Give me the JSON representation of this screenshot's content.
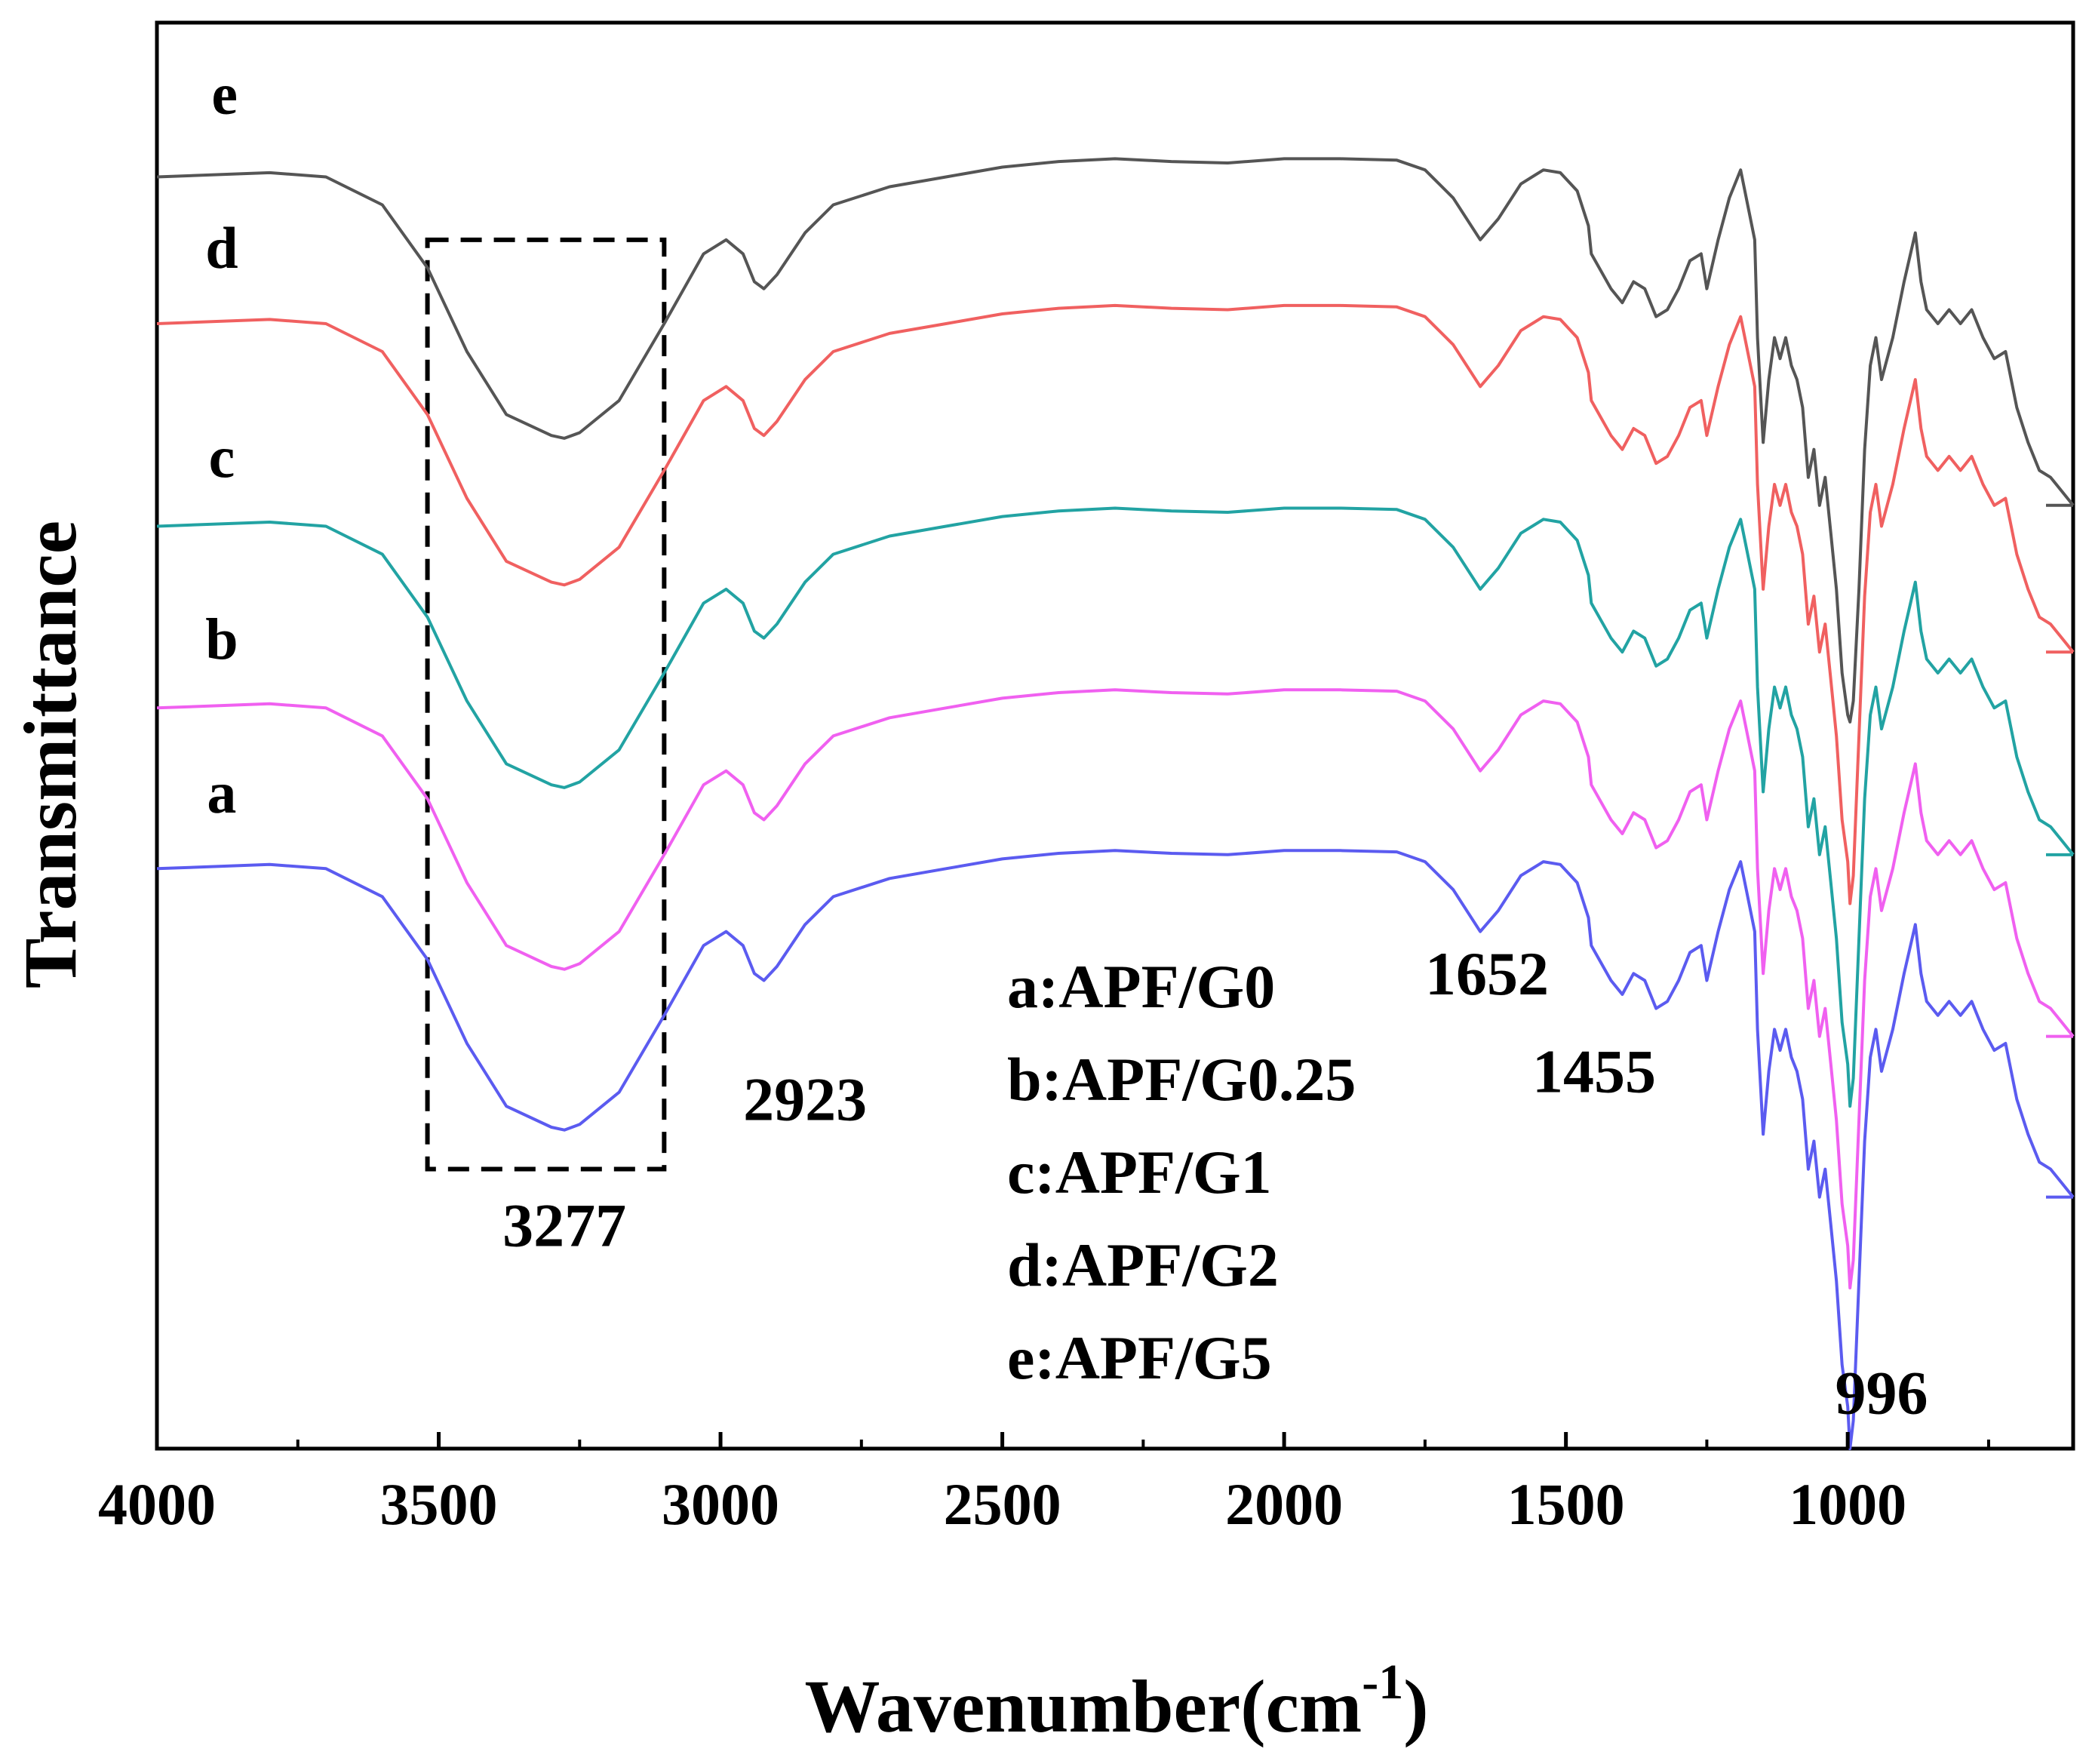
{
  "chart_data": {
    "type": "line",
    "title": "",
    "xlabel": "Wavenumber(cm",
    "xlabel_sup": "-1",
    "xlabel_close": ")",
    "ylabel": "Transmittance",
    "xlim": [
      4000,
      600
    ],
    "ylim": [
      0,
      1
    ],
    "xticks": [
      4000,
      3500,
      3000,
      2500,
      2000,
      1500,
      1000
    ],
    "xtick_labels": [
      "4000",
      "3500",
      "3000",
      "2500",
      "2000",
      "1500",
      "1000"
    ],
    "grid": false,
    "offset_stacked": true,
    "series": [
      {
        "name": "a:APF/G0",
        "id": "a",
        "color": "#5b5bf0",
        "x": [
          4000,
          3800,
          3700,
          3600,
          3520,
          3450,
          3380,
          3300,
          3277,
          3250,
          3180,
          3100,
          3030,
          2990,
          2960,
          2940,
          2923,
          2900,
          2850,
          2800,
          2700,
          2600,
          2500,
          2400,
          2300,
          2200,
          2100,
          2000,
          1900,
          1800,
          1750,
          1700,
          1652,
          1620,
          1580,
          1540,
          1510,
          1480,
          1460,
          1455,
          1420,
          1400,
          1380,
          1360,
          1340,
          1320,
          1300,
          1280,
          1260,
          1250,
          1230,
          1210,
          1190,
          1180,
          1165,
          1160,
          1150,
          1140,
          1130,
          1120,
          1110,
          1100,
          1090,
          1080,
          1070,
          1060,
          1050,
          1040,
          1030,
          1020,
          1010,
          1000,
          996,
          990,
          980,
          970,
          960,
          950,
          940,
          920,
          900,
          880,
          870,
          860,
          840,
          820,
          800,
          780,
          760,
          740,
          720,
          700,
          680,
          660,
          640,
          620,
          600
        ],
        "y": [
          0.415,
          0.418,
          0.415,
          0.395,
          0.35,
          0.29,
          0.245,
          0.23,
          0.228,
          0.232,
          0.255,
          0.31,
          0.36,
          0.37,
          0.36,
          0.34,
          0.335,
          0.345,
          0.375,
          0.395,
          0.408,
          0.415,
          0.422,
          0.426,
          0.428,
          0.426,
          0.425,
          0.428,
          0.428,
          0.427,
          0.42,
          0.4,
          0.37,
          0.385,
          0.41,
          0.42,
          0.418,
          0.405,
          0.38,
          0.36,
          0.335,
          0.325,
          0.34,
          0.335,
          0.315,
          0.32,
          0.335,
          0.355,
          0.36,
          0.335,
          0.37,
          0.4,
          0.42,
          0.4,
          0.37,
          0.3,
          0.225,
          0.27,
          0.3,
          0.285,
          0.3,
          0.28,
          0.27,
          0.25,
          0.2,
          0.22,
          0.18,
          0.2,
          0.16,
          0.12,
          0.06,
          0.03,
          0.0,
          0.02,
          0.12,
          0.22,
          0.28,
          0.3,
          0.27,
          0.3,
          0.34,
          0.375,
          0.34,
          0.32,
          0.31,
          0.32,
          0.31,
          0.32,
          0.3,
          0.285,
          0.29,
          0.25,
          0.225,
          0.205,
          0.2,
          0.19,
          0.18
        ]
      },
      {
        "name": "b:APF/G0.25",
        "id": "b",
        "color": "#f060f0",
        "x": [
          4000,
          3800,
          3700,
          3600,
          3520,
          3450,
          3380,
          3300,
          3277,
          3250,
          3180,
          3100,
          3030,
          2990,
          2960,
          2940,
          2923,
          2900,
          2850,
          2800,
          2700,
          2600,
          2500,
          2400,
          2300,
          2200,
          2100,
          2000,
          1900,
          1800,
          1750,
          1700,
          1652,
          1620,
          1580,
          1540,
          1510,
          1480,
          1460,
          1455,
          1420,
          1400,
          1380,
          1360,
          1340,
          1320,
          1300,
          1280,
          1260,
          1250,
          1230,
          1210,
          1190,
          1180,
          1165,
          1160,
          1150,
          1140,
          1130,
          1120,
          1110,
          1100,
          1090,
          1080,
          1070,
          1060,
          1050,
          1040,
          1030,
          1020,
          1010,
          1000,
          996,
          990,
          980,
          970,
          960,
          950,
          940,
          920,
          900,
          880,
          870,
          860,
          840,
          820,
          800,
          780,
          760,
          740,
          720,
          700,
          680,
          660,
          640,
          620,
          600
        ],
        "y": [
          0.53,
          0.533,
          0.53,
          0.51,
          0.465,
          0.405,
          0.36,
          0.345,
          0.343,
          0.347,
          0.37,
          0.425,
          0.475,
          0.485,
          0.475,
          0.455,
          0.45,
          0.46,
          0.49,
          0.51,
          0.523,
          0.53,
          0.537,
          0.541,
          0.543,
          0.541,
          0.54,
          0.543,
          0.543,
          0.542,
          0.535,
          0.515,
          0.485,
          0.5,
          0.525,
          0.535,
          0.533,
          0.52,
          0.495,
          0.475,
          0.45,
          0.44,
          0.455,
          0.45,
          0.43,
          0.435,
          0.45,
          0.47,
          0.475,
          0.45,
          0.485,
          0.515,
          0.535,
          0.515,
          0.485,
          0.415,
          0.34,
          0.385,
          0.415,
          0.4,
          0.415,
          0.395,
          0.385,
          0.365,
          0.315,
          0.335,
          0.295,
          0.315,
          0.275,
          0.235,
          0.175,
          0.145,
          0.115,
          0.135,
          0.235,
          0.335,
          0.395,
          0.415,
          0.385,
          0.415,
          0.455,
          0.49,
          0.455,
          0.435,
          0.425,
          0.435,
          0.425,
          0.435,
          0.415,
          0.4,
          0.405,
          0.365,
          0.34,
          0.32,
          0.315,
          0.305,
          0.295
        ]
      },
      {
        "name": "c:APF/G1",
        "id": "c",
        "color": "#22a3a3",
        "x": [
          4000,
          3800,
          3700,
          3600,
          3520,
          3450,
          3380,
          3300,
          3277,
          3250,
          3180,
          3100,
          3030,
          2990,
          2960,
          2940,
          2923,
          2900,
          2850,
          2800,
          2700,
          2600,
          2500,
          2400,
          2300,
          2200,
          2100,
          2000,
          1900,
          1800,
          1750,
          1700,
          1652,
          1620,
          1580,
          1540,
          1510,
          1480,
          1460,
          1455,
          1420,
          1400,
          1380,
          1360,
          1340,
          1320,
          1300,
          1280,
          1260,
          1250,
          1230,
          1210,
          1190,
          1180,
          1165,
          1160,
          1150,
          1140,
          1130,
          1120,
          1110,
          1100,
          1090,
          1080,
          1070,
          1060,
          1050,
          1040,
          1030,
          1020,
          1010,
          1000,
          996,
          990,
          980,
          970,
          960,
          950,
          940,
          920,
          900,
          880,
          870,
          860,
          840,
          820,
          800,
          780,
          760,
          740,
          720,
          700,
          680,
          660,
          640,
          620,
          600
        ],
        "y": [
          0.66,
          0.663,
          0.66,
          0.64,
          0.595,
          0.535,
          0.49,
          0.475,
          0.473,
          0.477,
          0.5,
          0.555,
          0.605,
          0.615,
          0.605,
          0.585,
          0.58,
          0.59,
          0.62,
          0.64,
          0.653,
          0.66,
          0.667,
          0.671,
          0.673,
          0.671,
          0.67,
          0.673,
          0.673,
          0.672,
          0.665,
          0.645,
          0.615,
          0.63,
          0.655,
          0.665,
          0.663,
          0.65,
          0.625,
          0.605,
          0.58,
          0.57,
          0.585,
          0.58,
          0.56,
          0.565,
          0.58,
          0.6,
          0.605,
          0.58,
          0.615,
          0.645,
          0.665,
          0.645,
          0.615,
          0.545,
          0.47,
          0.515,
          0.545,
          0.53,
          0.545,
          0.525,
          0.515,
          0.495,
          0.445,
          0.465,
          0.425,
          0.445,
          0.405,
          0.365,
          0.305,
          0.275,
          0.245,
          0.265,
          0.365,
          0.465,
          0.525,
          0.545,
          0.515,
          0.545,
          0.585,
          0.62,
          0.585,
          0.565,
          0.555,
          0.565,
          0.555,
          0.565,
          0.545,
          0.53,
          0.535,
          0.495,
          0.47,
          0.45,
          0.445,
          0.435,
          0.425
        ]
      },
      {
        "name": "d:APF/G2",
        "id": "d",
        "color": "#f06060",
        "x": [
          4000,
          3800,
          3700,
          3600,
          3520,
          3450,
          3380,
          3300,
          3277,
          3250,
          3180,
          3100,
          3030,
          2990,
          2960,
          2940,
          2923,
          2900,
          2850,
          2800,
          2700,
          2600,
          2500,
          2400,
          2300,
          2200,
          2100,
          2000,
          1900,
          1800,
          1750,
          1700,
          1652,
          1620,
          1580,
          1540,
          1510,
          1480,
          1460,
          1455,
          1420,
          1400,
          1380,
          1360,
          1340,
          1320,
          1300,
          1280,
          1260,
          1250,
          1230,
          1210,
          1190,
          1180,
          1165,
          1160,
          1150,
          1140,
          1130,
          1120,
          1110,
          1100,
          1090,
          1080,
          1070,
          1060,
          1050,
          1040,
          1030,
          1020,
          1010,
          1000,
          996,
          990,
          980,
          970,
          960,
          950,
          940,
          920,
          900,
          880,
          870,
          860,
          840,
          820,
          800,
          780,
          760,
          740,
          720,
          700,
          680,
          660,
          640,
          620,
          600
        ],
        "y": [
          0.805,
          0.808,
          0.805,
          0.785,
          0.74,
          0.68,
          0.635,
          0.62,
          0.618,
          0.622,
          0.645,
          0.7,
          0.75,
          0.76,
          0.75,
          0.73,
          0.725,
          0.735,
          0.765,
          0.785,
          0.798,
          0.805,
          0.812,
          0.816,
          0.818,
          0.816,
          0.815,
          0.818,
          0.818,
          0.817,
          0.81,
          0.79,
          0.76,
          0.775,
          0.8,
          0.81,
          0.808,
          0.795,
          0.77,
          0.75,
          0.725,
          0.715,
          0.73,
          0.725,
          0.705,
          0.71,
          0.725,
          0.745,
          0.75,
          0.725,
          0.76,
          0.79,
          0.81,
          0.79,
          0.76,
          0.69,
          0.615,
          0.66,
          0.69,
          0.675,
          0.69,
          0.67,
          0.66,
          0.64,
          0.59,
          0.61,
          0.57,
          0.59,
          0.55,
          0.51,
          0.45,
          0.42,
          0.39,
          0.41,
          0.51,
          0.61,
          0.67,
          0.69,
          0.66,
          0.69,
          0.73,
          0.765,
          0.73,
          0.71,
          0.7,
          0.71,
          0.7,
          0.71,
          0.69,
          0.675,
          0.68,
          0.64,
          0.615,
          0.595,
          0.59,
          0.58,
          0.57
        ]
      },
      {
        "name": "e:APF/G5",
        "id": "e",
        "color": "#555555",
        "x": [
          4000,
          3800,
          3700,
          3600,
          3520,
          3450,
          3380,
          3300,
          3277,
          3250,
          3180,
          3100,
          3030,
          2990,
          2960,
          2940,
          2923,
          2900,
          2850,
          2800,
          2700,
          2600,
          2500,
          2400,
          2300,
          2200,
          2100,
          2000,
          1900,
          1800,
          1750,
          1700,
          1652,
          1620,
          1580,
          1540,
          1510,
          1480,
          1460,
          1455,
          1420,
          1400,
          1380,
          1360,
          1340,
          1320,
          1300,
          1280,
          1260,
          1250,
          1230,
          1210,
          1190,
          1180,
          1165,
          1160,
          1150,
          1140,
          1130,
          1120,
          1110,
          1100,
          1090,
          1080,
          1070,
          1060,
          1050,
          1040,
          1030,
          1020,
          1010,
          1000,
          996,
          990,
          980,
          970,
          960,
          950,
          940,
          920,
          900,
          880,
          870,
          860,
          840,
          820,
          800,
          780,
          760,
          740,
          720,
          700,
          680,
          660,
          640,
          620,
          600
        ],
        "y": [
          0.91,
          0.913,
          0.91,
          0.89,
          0.845,
          0.785,
          0.74,
          0.725,
          0.723,
          0.727,
          0.75,
          0.805,
          0.855,
          0.865,
          0.855,
          0.835,
          0.83,
          0.84,
          0.87,
          0.89,
          0.903,
          0.91,
          0.917,
          0.921,
          0.923,
          0.921,
          0.92,
          0.923,
          0.923,
          0.922,
          0.915,
          0.895,
          0.865,
          0.88,
          0.905,
          0.915,
          0.913,
          0.9,
          0.875,
          0.855,
          0.83,
          0.82,
          0.835,
          0.83,
          0.81,
          0.815,
          0.83,
          0.85,
          0.855,
          0.83,
          0.865,
          0.895,
          0.915,
          0.895,
          0.865,
          0.795,
          0.72,
          0.765,
          0.795,
          0.78,
          0.795,
          0.775,
          0.765,
          0.745,
          0.695,
          0.715,
          0.675,
          0.695,
          0.655,
          0.615,
          0.555,
          0.525,
          0.52,
          0.535,
          0.615,
          0.715,
          0.775,
          0.795,
          0.765,
          0.795,
          0.835,
          0.87,
          0.835,
          0.815,
          0.805,
          0.815,
          0.805,
          0.815,
          0.795,
          0.78,
          0.785,
          0.745,
          0.72,
          0.7,
          0.695,
          0.685,
          0.675
        ]
      }
    ],
    "curve_labels": [
      {
        "text": "e",
        "x": 3880,
        "y": 0.955
      },
      {
        "text": "d",
        "x": 3885,
        "y": 0.845
      },
      {
        "text": "c",
        "x": 3885,
        "y": 0.695
      },
      {
        "text": "b",
        "x": 3885,
        "y": 0.565
      },
      {
        "text": "a",
        "x": 3885,
        "y": 0.455
      }
    ],
    "annotations": [
      {
        "text": "3277",
        "x": 3277,
        "y": 0.145
      },
      {
        "text": "2923",
        "x": 2850,
        "y": 0.235
      },
      {
        "text": "1652",
        "x": 1640,
        "y": 0.325
      },
      {
        "text": "1455",
        "x": 1450,
        "y": 0.255
      },
      {
        "text": "996",
        "x": 940,
        "y": 0.025
      }
    ],
    "highlight_box": {
      "x_from": 3520,
      "x_to": 3100,
      "y_from": 0.2,
      "y_to": 0.865
    },
    "legend": {
      "placement": "bottom-center",
      "entries": [
        "a:APF/G0",
        "b:APF/G0.25",
        "c:APF/G1",
        "d:APF/G2",
        "e:APF/G5"
      ]
    }
  }
}
